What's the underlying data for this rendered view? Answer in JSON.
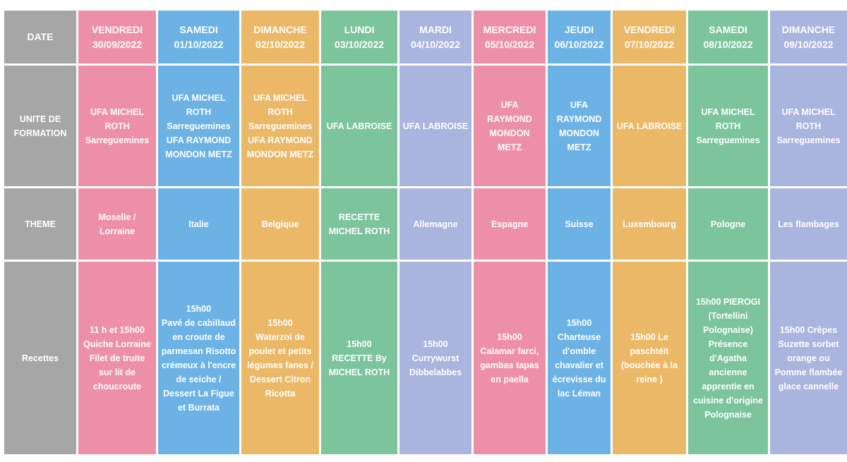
{
  "colors": {
    "header_gray": "#a6a6a6",
    "pink": "#ee8fa8",
    "blue": "#6cb2e5",
    "orange": "#ebb867",
    "green": "#7bc49c",
    "lavender": "#a9b4df"
  },
  "row_headers": {
    "date": "DATE",
    "unite": "UNITE DE\nFORMATION",
    "theme": "THEME",
    "recettes": "Recettes"
  },
  "columns": [
    {
      "color": "pink",
      "day": "VENDREDI\n30/09/2022",
      "unite": "UFA MICHEL\nROTH\nSarreguemines",
      "theme": "Moselle /\nLorraine",
      "recette": "11 h et  15h00\nQuiche Lorraine\nFilet de truite\nsur lit de\nchoucroute"
    },
    {
      "color": "blue",
      "day": "SAMEDI\n01/10/2022",
      "unite": "UFA MICHEL\nROTH\nSarreguemines\nUFA RAYMOND\nMONDON METZ",
      "theme": "Italie",
      "recette": "15h00\nPavé de cabillaud\nen croute de\nparmesan Risotto\ncrémeux à l'encre\nde seiche  /\nDessert La Figue\net Burrata"
    },
    {
      "color": "orange",
      "day": "DIMANCHE\n02/10/2022",
      "unite": "UFA MICHEL\nROTH\nSarreguemines\nUFA RAYMOND\nMONDON METZ",
      "theme": "Belgique",
      "recette": "15h00\nWaterzoi de\npoulet et petits\nlégumes fanes  /\nDessert  Citron\nRicotta"
    },
    {
      "color": "green",
      "day": "LUNDI\n03/10/2022",
      "unite": "UFA LABROISE",
      "theme": "RECETTE\nMICHEL ROTH",
      "recette": "15h00\nRECETTE  By\nMICHEL ROTH"
    },
    {
      "color": "lavender",
      "day": "MARDI\n04/10/2022",
      "unite": "UFA LABROISE",
      "theme": "Allemagne",
      "recette": "15h00\nCurrywurst\nDibbelabbes"
    },
    {
      "color": "pink",
      "day": "MERCREDI\n05/10/2022",
      "unite": "UFA\nRAYMOND\nMONDON\nMETZ",
      "theme": "Espagne",
      "recette": "15h00\nCalamar farci,\ngambas tapas\nen paella"
    },
    {
      "color": "blue",
      "day": "JEUDI\n06/10/2022",
      "unite": "UFA\nRAYMOND\nMONDON\nMETZ",
      "theme": "Suisse",
      "recette": "15h00\nCharteuse\nd'omble\nchavalier et\nécrevisse du\nlac Léman"
    },
    {
      "color": "orange",
      "day": "VENDREDI\n07/10/2022",
      "unite": "UFA LABROISE",
      "theme": "Luxembourg",
      "recette": "15h00 Le\npaschtéit\n(bouchée à la\nreine )"
    },
    {
      "color": "green",
      "day": "SAMEDI\n08/10/2022",
      "unite": "UFA MICHEL\nROTH\nSarreguemines",
      "theme": "Pologne",
      "recette": "15h00  PIEROGI\n(Tortellini\nPolognaise)\nPrésence\nd'Agatha\nancienne\napprentie en\ncuisine d'origine\nPolognaise"
    },
    {
      "color": "lavender",
      "day": "DIMANCHE\n09/10/2022",
      "unite": "UFA MICHEL\nROTH\nSarreguemines",
      "theme": "Les flambages",
      "recette": "15h00 Crêpes\nSuzette sorbet\norange  ou\nPomme flambée\nglace cannelle"
    }
  ]
}
